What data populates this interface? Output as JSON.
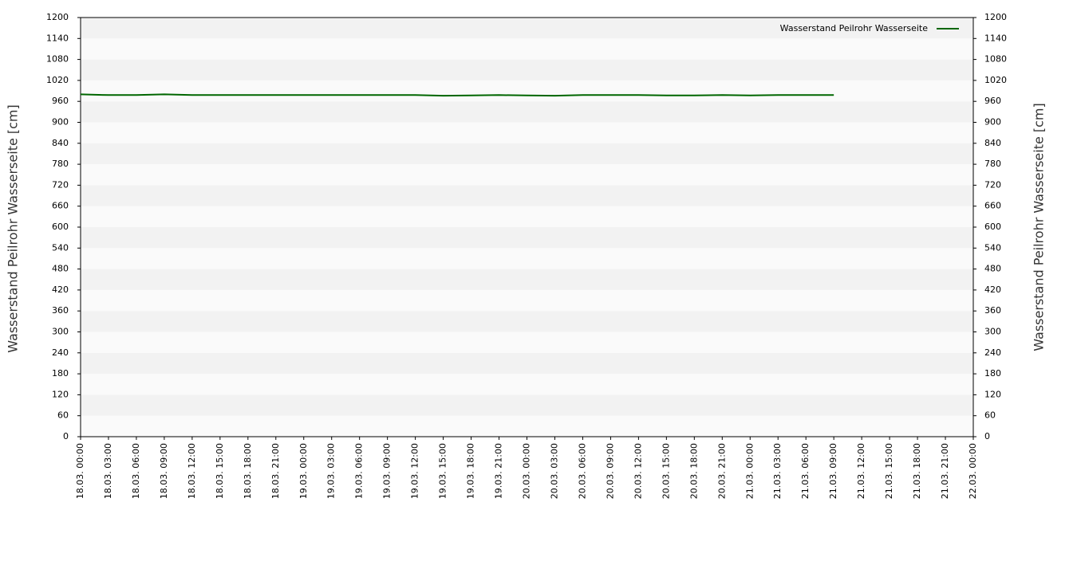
{
  "chart_data": {
    "type": "line",
    "y_label": "Wasserstand Peilrohr Wasserseite [cm]",
    "y2_label": "Wasserstand Peilrohr Wasserseite [cm]",
    "categories": [
      "18.03. 00:00",
      "18.03. 03:00",
      "18.03. 06:00",
      "18.03. 09:00",
      "18.03. 12:00",
      "18.03. 15:00",
      "18.03. 18:00",
      "18.03. 21:00",
      "19.03. 00:00",
      "19.03. 03:00",
      "19.03. 06:00",
      "19.03. 09:00",
      "19.03. 12:00",
      "19.03. 15:00",
      "19.03. 18:00",
      "19.03. 21:00",
      "20.03. 00:00",
      "20.03. 03:00",
      "20.03. 06:00",
      "20.03. 09:00",
      "20.03. 12:00",
      "20.03. 15:00",
      "20.03. 18:00",
      "20.03. 21:00",
      "21.03. 00:00",
      "21.03. 03:00",
      "21.03. 06:00",
      "21.03. 09:00",
      "21.03. 12:00",
      "21.03. 15:00",
      "21.03. 18:00",
      "21.03. 21:00",
      "22.03. 00:00"
    ],
    "series": [
      {
        "name": "Wasserstand Peilrohr Wasserseite",
        "color": "#006600",
        "values": [
          980,
          978,
          978,
          980,
          978,
          978,
          978,
          978,
          978,
          978,
          978,
          978,
          978,
          976,
          977,
          978,
          977,
          976,
          978,
          978,
          978,
          977,
          977,
          978,
          977,
          978,
          978,
          978,
          null,
          null,
          null,
          null,
          null
        ]
      }
    ],
    "ylim": [
      0,
      1200
    ],
    "yticks": [
      0,
      60,
      120,
      180,
      240,
      300,
      360,
      420,
      480,
      540,
      600,
      660,
      720,
      780,
      840,
      900,
      960,
      1020,
      1080,
      1140,
      1200
    ],
    "y2lim": [
      0,
      1200
    ],
    "y2ticks": [
      0,
      60,
      120,
      180,
      240,
      300,
      360,
      420,
      480,
      540,
      600,
      660,
      720,
      780,
      840,
      900,
      960,
      1020,
      1080,
      1140,
      1200
    ],
    "band_colors": [
      "#f2f2f2",
      "#fafafa"
    ],
    "legend": "top-right"
  }
}
